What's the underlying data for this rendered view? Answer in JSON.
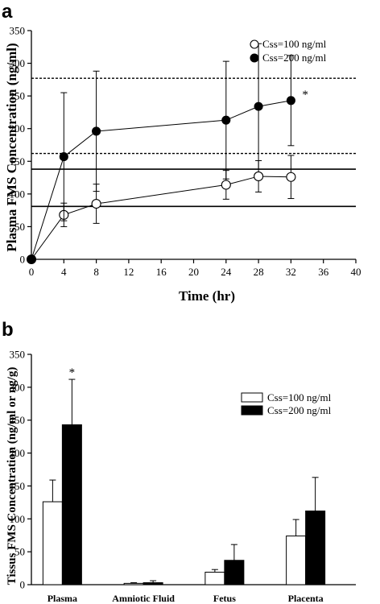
{
  "chart_data": [
    {
      "panel": "a",
      "type": "line",
      "xlabel": "Time (hr)",
      "ylabel": "Plasma FMS Concentration (ng/ml)",
      "xlim": [
        0,
        40
      ],
      "ylim": [
        0,
        350
      ],
      "xticks": [
        0,
        4,
        8,
        12,
        16,
        20,
        24,
        28,
        32,
        36,
        40
      ],
      "yticks": [
        0,
        50,
        100,
        150,
        200,
        250,
        300,
        350
      ],
      "legend_position": "top-right",
      "series": [
        {
          "name": "Css=100 ng/ml",
          "marker": "open-circle",
          "x": [
            0,
            4,
            8,
            24,
            28,
            32
          ],
          "y": [
            0,
            68,
            85,
            114,
            127,
            126
          ],
          "error": [
            0,
            18,
            30,
            22,
            24,
            33
          ]
        },
        {
          "name": "Css=200 ng/ml",
          "marker": "filled-circle",
          "x": [
            0,
            4,
            8,
            24,
            28,
            32
          ],
          "y": [
            0,
            157,
            196,
            213,
            234,
            243
          ],
          "error": [
            0,
            98,
            92,
            90,
            96,
            69
          ]
        }
      ],
      "reference_lines": [
        {
          "style": "solid",
          "y": 81
        },
        {
          "style": "solid",
          "y": 138
        },
        {
          "style": "dotted",
          "y": 162
        },
        {
          "style": "dotted",
          "y": 277
        }
      ],
      "annotations": [
        {
          "text": "*",
          "series": 1,
          "x": 32
        }
      ]
    },
    {
      "panel": "b",
      "type": "bar",
      "ylabel": "Tissus FMS Concentration (ng/ml or ng/g)",
      "categories": [
        "Plasma",
        "Amniotic Fluid",
        "Fetus",
        "Placenta"
      ],
      "ylim": [
        0,
        350
      ],
      "yticks": [
        0,
        50,
        100,
        150,
        200,
        250,
        300,
        350
      ],
      "legend_position": "top-right",
      "series": [
        {
          "name": "Css=100 ng/ml",
          "fill": "white",
          "values": [
            126,
            2,
            19,
            74
          ],
          "error": [
            33,
            1,
            4,
            25
          ]
        },
        {
          "name": "Css=200 ng/ml",
          "fill": "black",
          "values": [
            243,
            3,
            37,
            112
          ],
          "error": [
            69,
            3,
            24,
            51
          ]
        }
      ],
      "annotations": [
        {
          "text": "*",
          "series": 1,
          "category": 0
        }
      ]
    }
  ]
}
